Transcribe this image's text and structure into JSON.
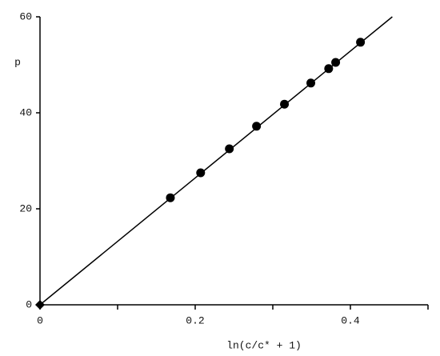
{
  "chart_data": {
    "type": "scatter",
    "x_label": "ln(c/c* + 1)",
    "y_label": "p",
    "xlim": [
      0,
      0.5
    ],
    "xticks": [
      0,
      0.2,
      0.4
    ],
    "xminor_ticks": [
      0.1,
      0.3,
      0.5
    ],
    "ylim": [
      0,
      60
    ],
    "yticks": [
      0,
      20,
      40,
      60
    ],
    "series": [
      {
        "style": "points",
        "marker": "circle",
        "color": "#000000",
        "x": [
          0.168,
          0.207,
          0.244,
          0.279,
          0.315,
          0.349,
          0.372,
          0.381,
          0.413
        ],
        "values": [
          22.3,
          27.5,
          32.5,
          37.2,
          41.8,
          46.2,
          49.2,
          50.5,
          54.7
        ]
      },
      {
        "style": "points",
        "marker": "diamond",
        "color": "#000000",
        "x": [
          0
        ],
        "values": [
          0
        ]
      },
      {
        "style": "line",
        "color": "#000000",
        "x": [
          0,
          0.454
        ],
        "values": [
          0,
          60
        ]
      }
    ]
  }
}
